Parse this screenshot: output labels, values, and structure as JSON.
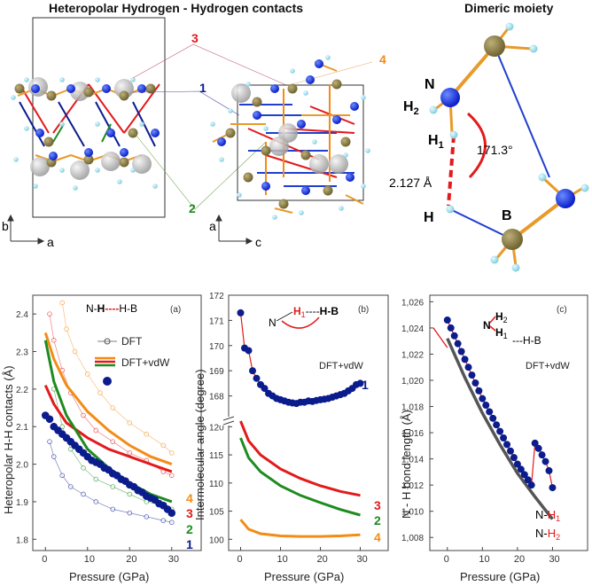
{
  "top": {
    "title_main": "Heteropolar Hydrogen - Hydrogen contacts",
    "title_dimer": "Dimeric moiety",
    "path_labels": [
      "3",
      "1",
      "4",
      "2"
    ],
    "axis_b": "b",
    "axis_a1": "a",
    "axis_a2": "a",
    "axis_c": "c",
    "dimer": {
      "N": "N",
      "H2_main": "H",
      "H2_sub": "2",
      "H1_main": "H",
      "H1_sub": "1",
      "H": "H",
      "B": "B",
      "angle": "171.3°",
      "dist": "2.127 Å"
    }
  },
  "chart_data": [
    {
      "type": "line",
      "panel": "(a)",
      "xlabel": "Pressure (GPa)",
      "ylabel": "Heteropolar H-H contacts (Å)",
      "xlim": [
        -3,
        37
      ],
      "ylim": [
        1.77,
        2.45
      ],
      "xticks": [
        "0",
        "10",
        "20",
        "30"
      ],
      "yticks": [
        "1.8",
        "1.9",
        "2.0",
        "2.1",
        "2.2",
        "2.3",
        "2.4"
      ],
      "inset": {
        "n": "N-",
        "h1": "H",
        "dash": "----",
        "hb": "H-B"
      },
      "legend": {
        "dft": "DFT",
        "vdw": "DFT+vdW"
      },
      "series_labels": [
        "4",
        "3",
        "2",
        "1"
      ],
      "series_colors": [
        "#f28c16",
        "#e31a1c",
        "#1f8b1f",
        "#0b1c8c"
      ],
      "series": [
        {
          "name": "4",
          "method": "DFT+vdW",
          "x": [
            0,
            2,
            5,
            10,
            15,
            20,
            25,
            30
          ],
          "values": [
            2.35,
            2.28,
            2.21,
            2.14,
            2.09,
            2.05,
            2.02,
            2.0
          ]
        },
        {
          "name": "3",
          "method": "DFT+vdW",
          "x": [
            0,
            2,
            5,
            10,
            15,
            20,
            25,
            30
          ],
          "values": [
            2.21,
            2.16,
            2.11,
            2.07,
            2.04,
            2.02,
            2.0,
            1.98
          ]
        },
        {
          "name": "2",
          "method": "DFT+vdW",
          "x": [
            0,
            2,
            5,
            10,
            15,
            20,
            25,
            30
          ],
          "values": [
            2.33,
            2.22,
            2.13,
            2.04,
            1.99,
            1.95,
            1.92,
            1.9
          ]
        },
        {
          "name": "1",
          "method": "DFT+vdW",
          "x": [
            0,
            1,
            2,
            3,
            4,
            5,
            6,
            7,
            8,
            9,
            10,
            11,
            12,
            13,
            14,
            15,
            16,
            17,
            18,
            19,
            20,
            21,
            22,
            23,
            24,
            25,
            26,
            27,
            28,
            29,
            30
          ],
          "values": [
            2.13,
            2.12,
            2.1,
            2.09,
            2.08,
            2.07,
            2.06,
            2.05,
            2.04,
            2.03,
            2.02,
            2.01,
            2.005,
            2.0,
            1.99,
            1.985,
            1.975,
            1.97,
            1.96,
            1.955,
            1.945,
            1.94,
            1.93,
            1.925,
            1.915,
            1.91,
            1.905,
            1.895,
            1.89,
            1.88,
            1.87
          ]
        },
        {
          "name": "4",
          "method": "DFT",
          "x": [
            4,
            5,
            7,
            10,
            13,
            16,
            20,
            24,
            28,
            30
          ],
          "values": [
            2.43,
            2.36,
            2.3,
            2.24,
            2.19,
            2.15,
            2.11,
            2.08,
            2.05,
            2.03
          ]
        },
        {
          "name": "3",
          "method": "DFT",
          "x": [
            1,
            2,
            4,
            6,
            9,
            12,
            16,
            20,
            24,
            28,
            30
          ],
          "values": [
            2.4,
            2.33,
            2.25,
            2.19,
            2.13,
            2.09,
            2.06,
            2.03,
            2.01,
            1.98,
            1.97
          ]
        },
        {
          "name": "2",
          "method": "DFT",
          "x": [
            2,
            4,
            6,
            9,
            12,
            16,
            20,
            24,
            28,
            30
          ],
          "values": [
            2.2,
            2.1,
            2.04,
            1.99,
            1.96,
            1.94,
            1.92,
            1.9,
            1.89,
            1.88
          ]
        },
        {
          "name": "1",
          "method": "DFT",
          "x": [
            1,
            2,
            4,
            6,
            9,
            12,
            16,
            20,
            24,
            28,
            30
          ],
          "values": [
            2.06,
            2.02,
            1.97,
            1.94,
            1.92,
            1.9,
            1.88,
            1.87,
            1.86,
            1.85,
            1.845
          ]
        }
      ]
    },
    {
      "type": "line",
      "panel": "(b)",
      "xlabel": "Pressure (GPa)",
      "ylabel": "Intermolecular angle (degree)",
      "xlim": [
        -3,
        37
      ],
      "ylim_top": [
        167,
        172
      ],
      "ylim_bottom": [
        98,
        121
      ],
      "yticks_top": [
        "168",
        "169",
        "170",
        "171",
        "172"
      ],
      "yticks_bottom": [
        "100",
        "105",
        "110",
        "115",
        "120"
      ],
      "xticks": [
        "0",
        "10",
        "20",
        "30"
      ],
      "inset": {
        "n": "N",
        "h1_main": "H",
        "h1_sub": "1",
        "dash": "----",
        "hb": "H-B"
      },
      "legend": {
        "vdw": "DFT+vdW"
      },
      "series_labels": [
        "1",
        "3",
        "2",
        "4"
      ],
      "series_colors": [
        "#0b1c8c",
        "#e31a1c",
        "#1f8b1f",
        "#f28c16"
      ],
      "series": [
        {
          "name": "1",
          "method": "DFT+vdW",
          "x": [
            0,
            1,
            2,
            3,
            4,
            5,
            6,
            7,
            8,
            9,
            10,
            11,
            12,
            13,
            14,
            15,
            16,
            17,
            18,
            19,
            20,
            21,
            22,
            23,
            24,
            25,
            26,
            27,
            28,
            29,
            30
          ],
          "values": [
            171.3,
            169.9,
            169.8,
            169.0,
            168.7,
            168.45,
            168.3,
            168.1,
            168.0,
            167.9,
            167.85,
            167.8,
            167.75,
            167.72,
            167.7,
            167.75,
            167.75,
            167.8,
            167.78,
            167.82,
            167.85,
            167.87,
            167.9,
            167.95,
            168.0,
            168.05,
            168.1,
            168.2,
            168.3,
            168.45,
            168.5
          ]
        },
        {
          "name": "3",
          "method": "DFT+vdW",
          "x": [
            0,
            2,
            5,
            10,
            15,
            20,
            25,
            30
          ],
          "values": [
            121,
            117.5,
            115,
            112.5,
            110.8,
            109.5,
            108.5,
            107.8
          ]
        },
        {
          "name": "2",
          "method": "DFT+vdW",
          "x": [
            0,
            2,
            5,
            10,
            15,
            20,
            25,
            30
          ],
          "values": [
            118,
            114.5,
            112,
            109.5,
            107.8,
            106.5,
            105.3,
            104.3
          ]
        },
        {
          "name": "4",
          "method": "DFT+vdW",
          "x": [
            0,
            2,
            5,
            10,
            15,
            20,
            25,
            30
          ],
          "values": [
            103.5,
            101.8,
            101.0,
            100.6,
            100.5,
            100.5,
            100.6,
            100.8
          ]
        }
      ]
    },
    {
      "type": "line",
      "panel": "(c)",
      "xlabel": "Pressure (GPa)",
      "ylabel": "N - H bond length (Å)",
      "xlim": [
        -5,
        40
      ],
      "ylim": [
        1.007,
        1.0265
      ],
      "xticks": [
        "0",
        "10",
        "20",
        "30"
      ],
      "yticks": [
        "1,008",
        "1,010",
        "1,012",
        "1,014",
        "1,016",
        "1,018",
        "1,020",
        "1,022",
        "1,024",
        "1,026"
      ],
      "inset": {
        "n": "N",
        "h2_main": "H",
        "h2_sub": "2",
        "h1_main": "H",
        "h1_sub": "1",
        "dash": "---",
        "hb": "H-B"
      },
      "legend": {
        "vdw": "DFT+vdW"
      },
      "end_labels": {
        "nh1_pre": "N-",
        "nh1_main": "H",
        "nh1_sub": "1",
        "nh2_pre": "N-",
        "nh2_main": "H",
        "nh2_sub": "2"
      },
      "series": [
        {
          "name": "N-H1",
          "method": "DFT+vdW",
          "x": [
            0,
            1,
            2,
            3,
            4,
            5,
            6,
            7,
            8,
            9,
            10,
            11,
            12,
            13,
            14,
            15,
            16,
            17,
            18,
            19,
            20,
            21,
            22,
            23,
            24,
            25,
            26,
            27,
            28,
            29,
            30
          ],
          "values": [
            1.0246,
            1.024,
            1.0234,
            1.0228,
            1.0222,
            1.0216,
            1.021,
            1.0204,
            1.0198,
            1.0192,
            1.0186,
            1.0181,
            1.0176,
            1.0171,
            1.0166,
            1.0161,
            1.0156,
            1.0151,
            1.0146,
            1.0141,
            1.0136,
            1.0132,
            1.0128,
            1.0124,
            1.012,
            1.0152,
            1.0148,
            1.0143,
            1.0138,
            1.0131,
            1.0118
          ]
        },
        {
          "name": "N-H2",
          "method": "DFT+vdW",
          "x": [
            0,
            5,
            10,
            15,
            20,
            25,
            30
          ],
          "values": [
            1.0232,
            1.0202,
            1.0175,
            1.0151,
            1.0129,
            1.0111,
            1.0094
          ]
        },
        {
          "name": "N-H1 ext",
          "method": "DFT+vdW",
          "x": [
            -4,
            0
          ],
          "values": [
            1.024,
            1.0225
          ]
        }
      ]
    }
  ]
}
